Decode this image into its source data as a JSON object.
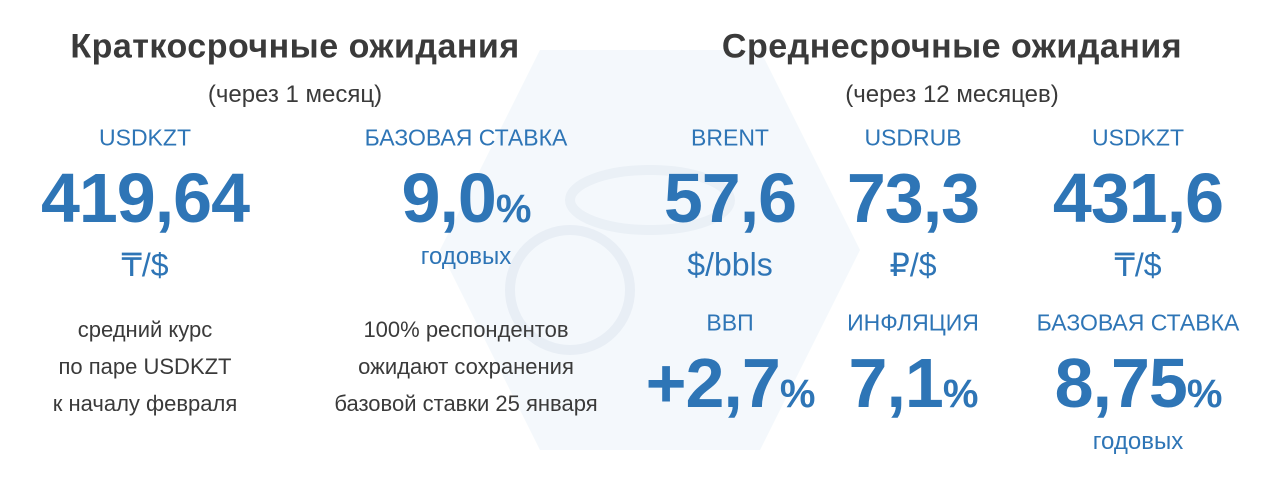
{
  "short_term": {
    "title": "Краткосрочные ожидания",
    "subtitle": "(через 1 месяц)",
    "items": [
      {
        "label": "USDKZT",
        "value": "419,64",
        "unit": "₸/$",
        "note": [
          "средний курс",
          "по паре USDKZT",
          "к началу февраля"
        ]
      },
      {
        "label": "БАЗОВАЯ СТАВКА",
        "value": "9,0",
        "suffix": "%",
        "unit": "годовых",
        "note": [
          "100% респондентов",
          "ожидают сохранения",
          "базовой ставки 25 января"
        ]
      }
    ]
  },
  "medium_term": {
    "title": "Среднесрочные ожидания",
    "subtitle": "(через 12 месяцев)",
    "items": [
      {
        "label": "BRENT",
        "value": "57,6",
        "unit": "$/bbls"
      },
      {
        "label": "USDRUB",
        "value": "73,3",
        "unit": "₽/$"
      },
      {
        "label": "USDKZT",
        "value": "431,6",
        "unit": "₸/$"
      },
      {
        "label": "ВВП",
        "value": "+2,7",
        "suffix": "%"
      },
      {
        "label": "ИНФЛЯЦИЯ",
        "value": "7,1",
        "suffix": "%"
      },
      {
        "label": "БАЗОВАЯ СТАВКА",
        "value": "8,75",
        "suffix": "%",
        "unit": "годовых"
      }
    ]
  }
}
